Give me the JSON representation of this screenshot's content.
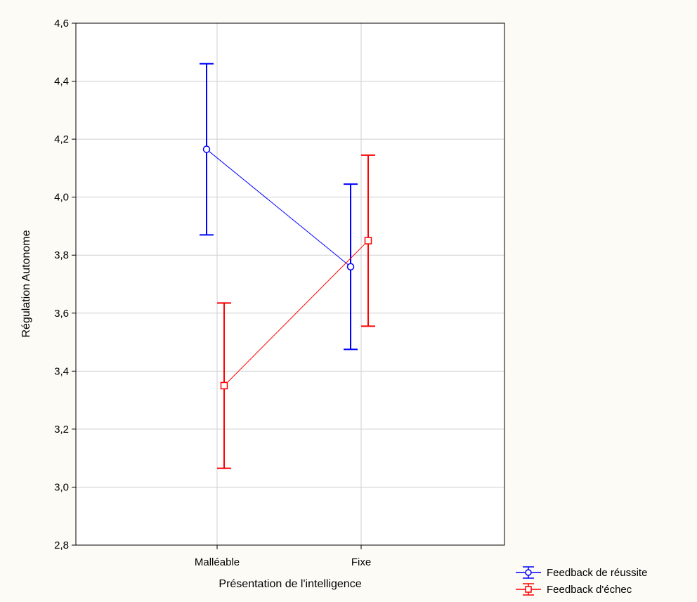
{
  "chart_data": {
    "type": "line",
    "title": "",
    "xlabel": "Présentation de l'intelligence",
    "ylabel": "Régulation Autonome",
    "categories": [
      "Malléable",
      "Fixe"
    ],
    "ylim": [
      2.8,
      4.6
    ],
    "yticks": [
      "2,8",
      "3,0",
      "3,2",
      "3,4",
      "3,6",
      "3,8",
      "4,0",
      "4,2",
      "4,4",
      "4,6"
    ],
    "grid": true,
    "legend_position": "bottom-right",
    "series": [
      {
        "name": "Feedback de réussite",
        "color": "#0000ff",
        "marker": "circle",
        "values": [
          4.165,
          3.76
        ],
        "ci_lower": [
          3.87,
          3.475
        ],
        "ci_upper": [
          4.46,
          4.045
        ]
      },
      {
        "name": "Feedback d'échec",
        "color": "#ff0000",
        "marker": "square",
        "values": [
          3.35,
          3.85
        ],
        "ci_lower": [
          3.065,
          3.555
        ],
        "ci_upper": [
          3.635,
          4.145
        ]
      }
    ]
  }
}
